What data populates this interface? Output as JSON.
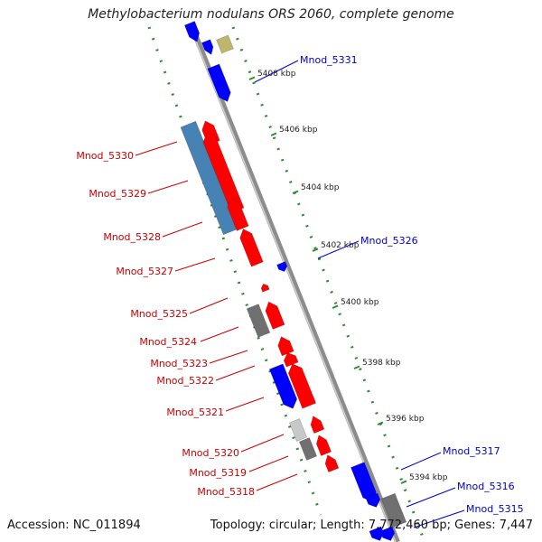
{
  "title": "Methylobacterium nodulans ORS 2060, complete genome",
  "accession": "Accession: NC_011894",
  "stats": "Topology: circular; Length: 7,772,460 bp; Genes: 7,447",
  "colors": {
    "backbone": "#8c8c8c",
    "tick": "#2e8b2e",
    "forward_label": "#0000cc",
    "reverse_label": "#cc0000",
    "red_gene": "#ff0000",
    "blue_gene": "#0000ff",
    "steel_gene": "#4682b4",
    "gray_gene": "#707070",
    "light_gray_gene": "#c8c8c8",
    "khaki_gene": "#bdb76b"
  },
  "ticks": [
    "5408 kbp",
    "5406 kbp",
    "5404 kbp",
    "5402 kbp",
    "5400 kbp",
    "5398 kbp",
    "5396 kbp",
    "5394 kbp"
  ],
  "labels_right": [
    "Mnod_5331",
    "Mnod_5326",
    "Mnod_5317",
    "Mnod_5316",
    "Mnod_5315"
  ],
  "labels_left": [
    "Mnod_5330",
    "Mnod_5329",
    "Mnod_5328",
    "Mnod_5327",
    "Mnod_5325",
    "Mnod_5324",
    "Mnod_5323",
    "Mnod_5322",
    "Mnod_5321",
    "Mnod_5320",
    "Mnod_5319",
    "Mnod_5318"
  ]
}
